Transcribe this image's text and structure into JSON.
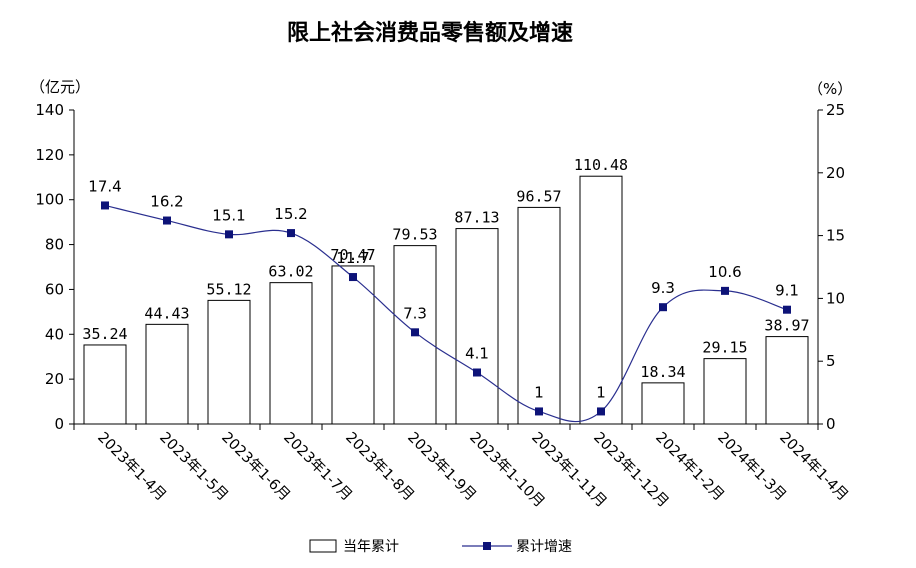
{
  "chart_data": {
    "type": "bar",
    "title": "限上社会消费品零售额及增速",
    "left_unit": "（亿元）",
    "right_unit": "（%）",
    "categories": [
      "2023年1-4月",
      "2023年1-5月",
      "2023年1-6月",
      "2023年1-7月",
      "2023年1-8月",
      "2023年1-9月",
      "2023年1-10月",
      "2023年1-11月",
      "2023年1-12月",
      "2024年1-2月",
      "2024年1-3月",
      "2024年1-4月"
    ],
    "series": [
      {
        "name": "当年累计",
        "kind": "bar",
        "axis": "left",
        "values": [
          35.24,
          44.43,
          55.12,
          63.02,
          70.47,
          79.53,
          87.13,
          96.57,
          110.48,
          18.34,
          29.15,
          38.97
        ],
        "labels": [
          "35.24",
          "44.43",
          "55.12",
          "63.02",
          "70.47",
          "79.53",
          "87.13",
          "96.57",
          "110.48",
          "18.34",
          "29.15",
          "38.97"
        ]
      },
      {
        "name": "累计增速",
        "kind": "line",
        "axis": "right",
        "values": [
          17.4,
          16.2,
          15.1,
          15.2,
          11.7,
          7.3,
          4.1,
          1,
          1,
          9.3,
          10.6,
          9.1
        ],
        "labels": [
          "17.4",
          "16.2",
          "15.1",
          "15.2",
          "11.7",
          "7.3",
          "4.1",
          "1",
          "1",
          "9.3",
          "10.6",
          "9.1"
        ]
      }
    ],
    "ylim_left": [
      0,
      140
    ],
    "yticks_left": [
      "0",
      "20",
      "40",
      "60",
      "80",
      "100",
      "120",
      "140"
    ],
    "ylim_right": [
      0,
      25
    ],
    "yticks_right": [
      "0",
      "5",
      "10",
      "15",
      "20",
      "25"
    ],
    "colors": {
      "bar_fill": "#ffffff",
      "bar_stroke": "#000000",
      "line": "#2a2f8f",
      "marker": "#0d1378"
    },
    "legend": {
      "position": "bottom"
    },
    "grid": false
  }
}
